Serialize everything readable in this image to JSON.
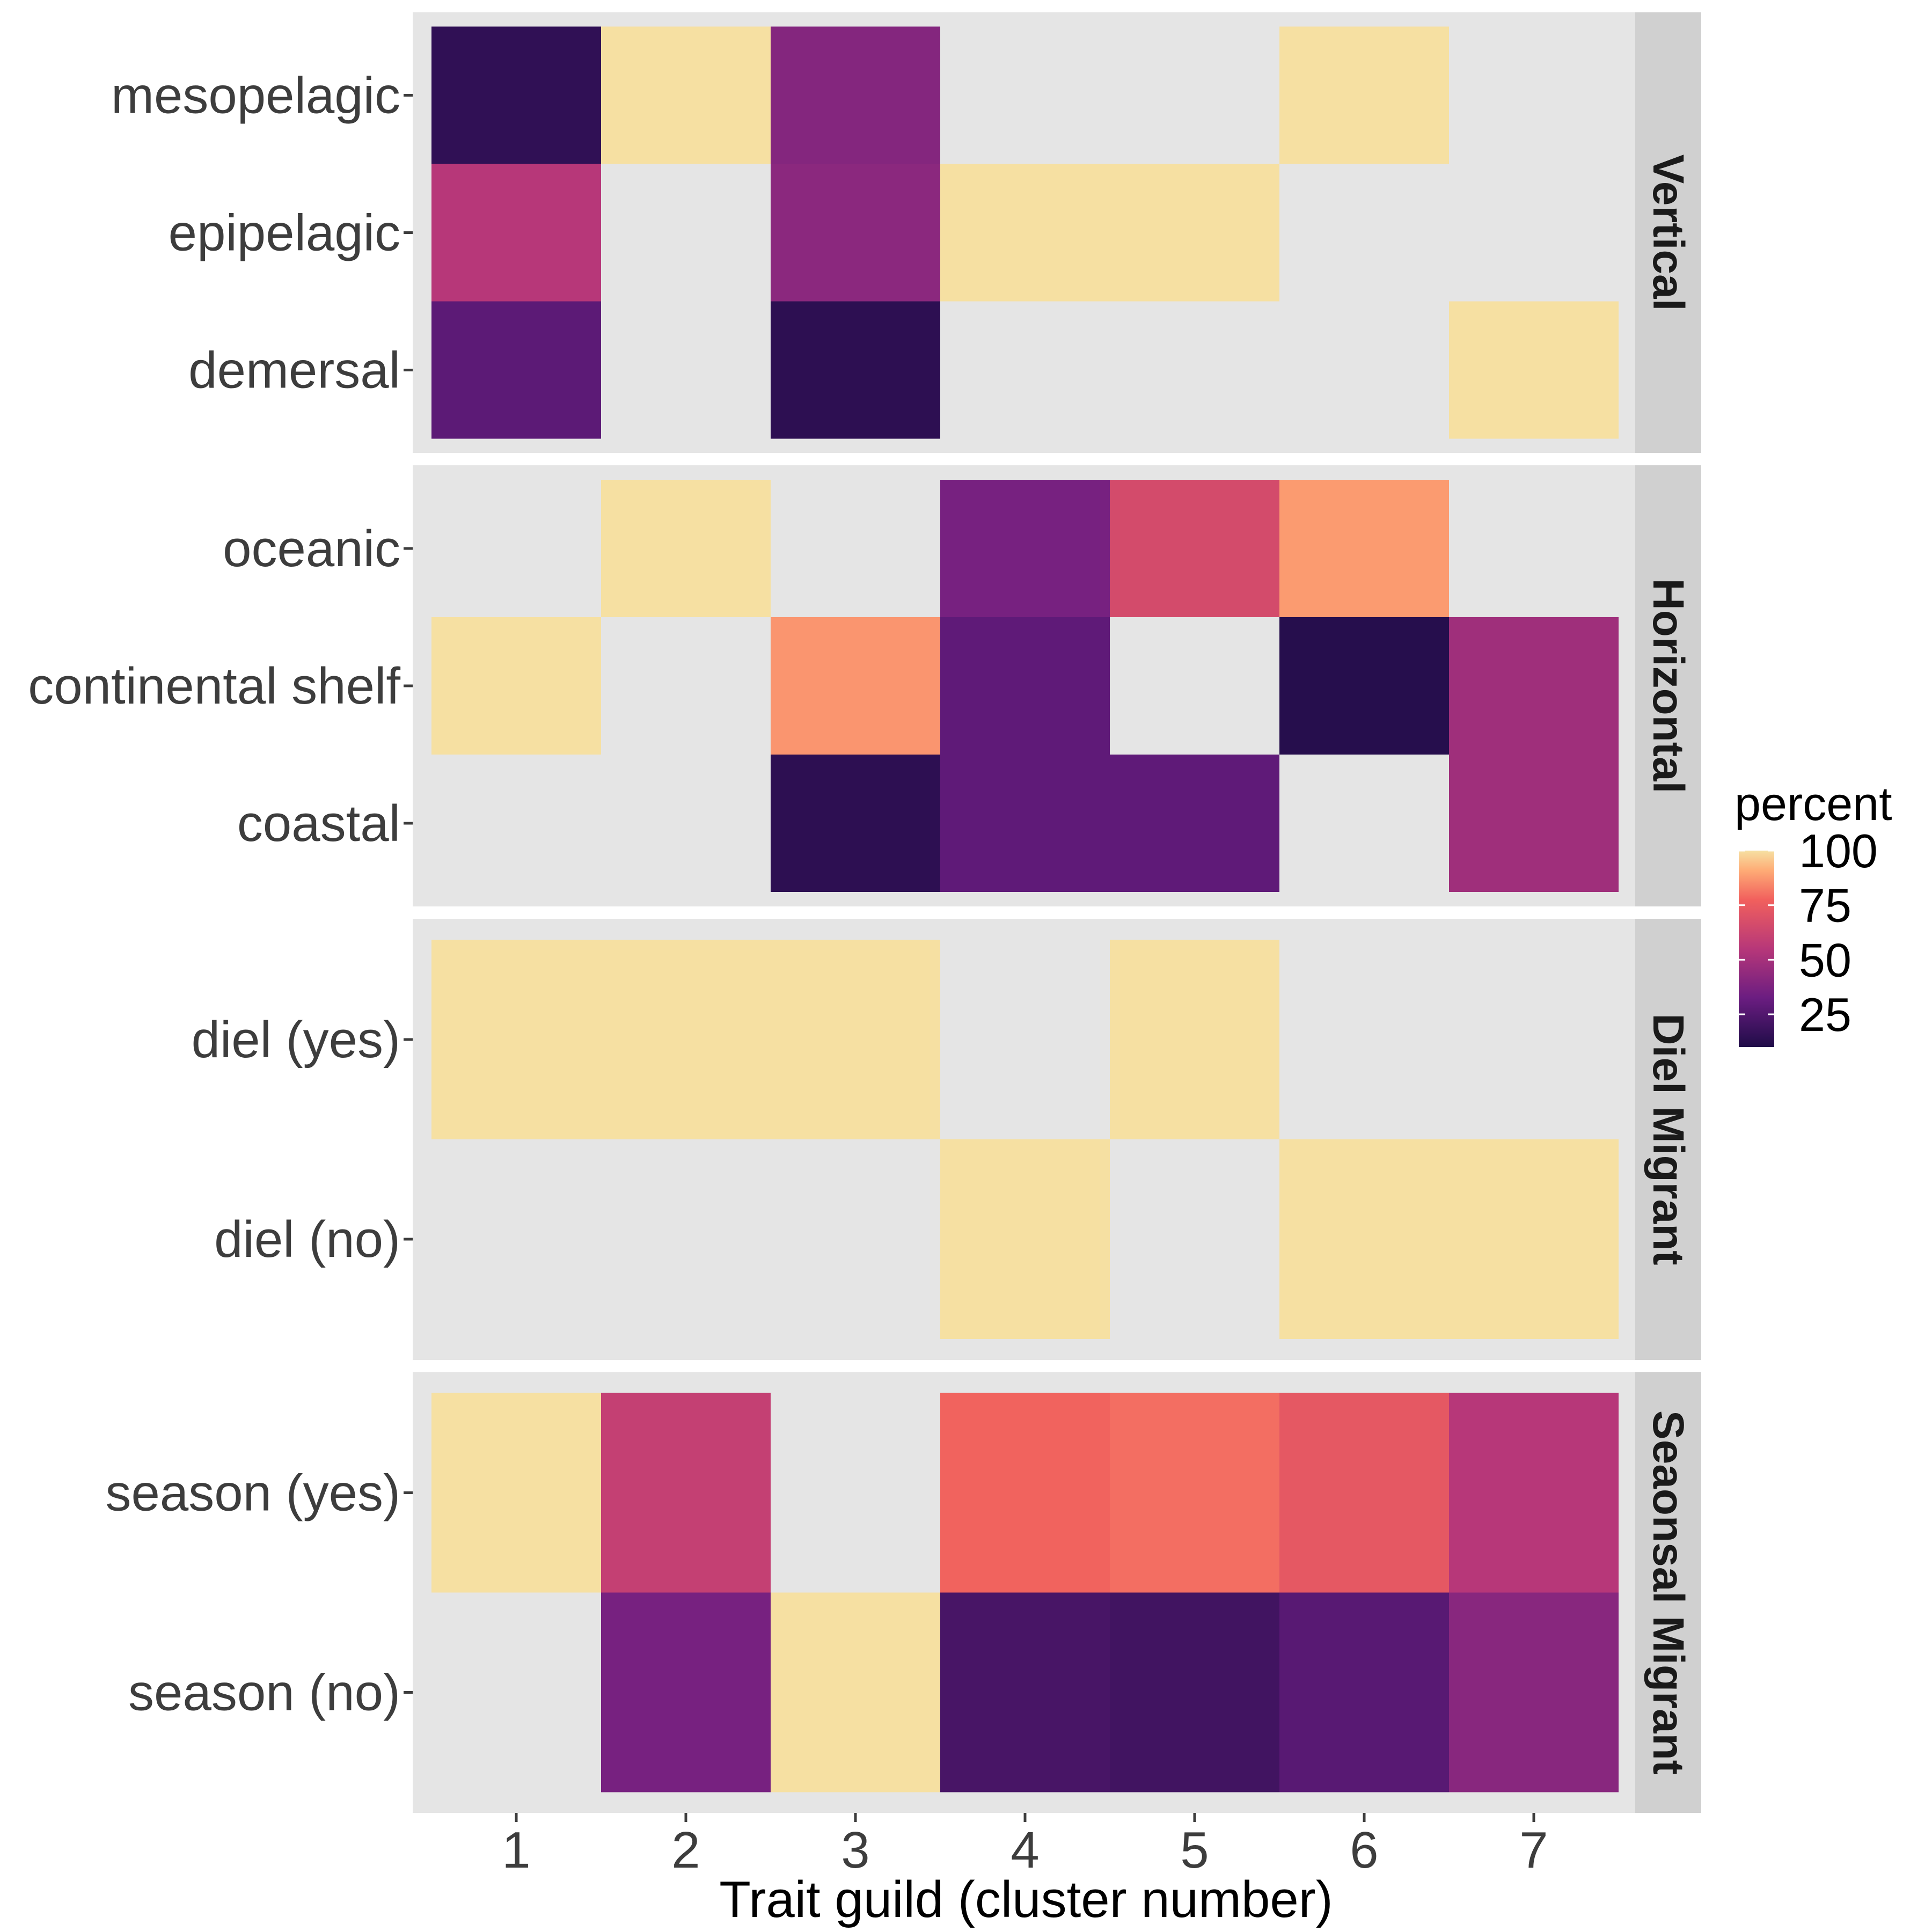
{
  "chart_data": {
    "type": "heatmap",
    "xlabel": "Trait guild (cluster number)",
    "x": [
      1,
      2,
      3,
      4,
      5,
      6,
      7
    ],
    "color_scale": {
      "name": "magma",
      "title": "percent",
      "ticks": [
        100,
        75,
        50,
        25
      ],
      "range": [
        10,
        100
      ],
      "na_color": "#e5e5e5"
    },
    "panels": [
      {
        "strip": "Vertical",
        "rows": [
          "mesopelagic",
          "epipelagic",
          "demersal"
        ],
        "values": [
          [
            15,
            100,
            40,
            null,
            null,
            100,
            null
          ],
          [
            55,
            null,
            42,
            100,
            100,
            null,
            null
          ],
          [
            28,
            null,
            14,
            null,
            null,
            null,
            100
          ]
        ]
      },
      {
        "strip": "Horizontal",
        "rows": [
          "oceanic",
          "continental shelf",
          "coastal"
        ],
        "values": [
          [
            null,
            100,
            null,
            36,
            66,
            88,
            null
          ],
          [
            100,
            null,
            87,
            29,
            null,
            12,
            48
          ],
          [
            null,
            null,
            14,
            29,
            29,
            null,
            48
          ]
        ]
      },
      {
        "strip": "Diel Migrant",
        "rows": [
          "diel (yes)",
          "diel (no)"
        ],
        "values": [
          [
            100,
            100,
            100,
            null,
            100,
            null,
            null
          ],
          [
            null,
            null,
            null,
            100,
            null,
            100,
            100
          ]
        ]
      },
      {
        "strip": "Seaonsal Migrant",
        "rows": [
          "season (yes)",
          "season (no)"
        ],
        "values": [
          [
            100,
            60,
            null,
            78,
            80,
            73,
            55
          ],
          [
            null,
            36,
            100,
            22,
            20,
            27,
            41
          ]
        ]
      }
    ]
  }
}
